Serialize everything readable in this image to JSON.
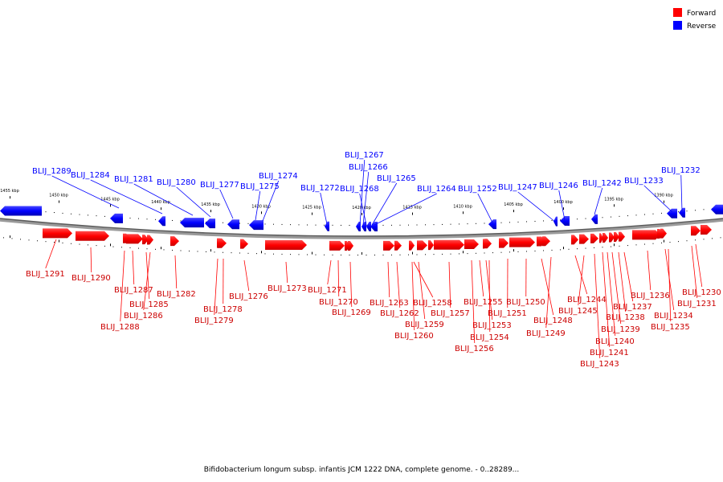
{
  "legend": {
    "forward": {
      "label": "Forward",
      "color": "#ff0000"
    },
    "reverse": {
      "label": "Reverse",
      "color": "#0000ff"
    }
  },
  "caption": "Bifidobacterium longum subsp. infantis JCM 1222 DNA, complete genome. - 0..28289...",
  "scale_labels": [
    "1455 kbp",
    "1450 kbp",
    "1445 kbp",
    "1440 kbp",
    "1435 kbp",
    "1430 kbp",
    "1425 kbp",
    "1420 kbp",
    "1415 kbp",
    "1410 kbp",
    "1405 kbp",
    "1400 kbp",
    "1395 kbp",
    "1390 kbp"
  ],
  "reverse_genes": [
    "BLIJ_1289",
    "BLIJ_1284",
    "BLIJ_1281",
    "BLIJ_1280",
    "BLIJ_1277",
    "BLIJ_1275",
    "BLIJ_1274",
    "BLIJ_1272",
    "BLIJ_1267",
    "BLIJ_1266",
    "BLIJ_1268",
    "BLIJ_1265",
    "BLIJ_1264",
    "BLIJ_1252",
    "BLIJ_1247",
    "BLIJ_1246",
    "BLIJ_1242",
    "BLIJ_1233",
    "BLIJ_1232"
  ],
  "forward_genes": [
    "BLIJ_1291",
    "BLIJ_1290",
    "BLIJ_1287",
    "BLIJ_1285",
    "BLIJ_1286",
    "BLIJ_1288",
    "BLIJ_1282",
    "BLIJ_1278",
    "BLIJ_1279",
    "BLIJ_1276",
    "BLIJ_1273",
    "BLIJ_1271",
    "BLIJ_1270",
    "BLIJ_1269",
    "BLIJ_1263",
    "BLIJ_1262",
    "BLIJ_1258",
    "BLIJ_1259",
    "BLIJ_1260",
    "BLIJ_1257",
    "BLIJ_1255",
    "BLIJ_1253",
    "BLIJ_1254",
    "BLIJ_1256",
    "BLIJ_1251",
    "BLIJ_1250",
    "BLIJ_1248",
    "BLIJ_1249",
    "BLIJ_1244",
    "BLIJ_1245",
    "BLIJ_1237",
    "BLIJ_1238",
    "BLIJ_1239",
    "BLIJ_1240",
    "BLIJ_1241",
    "BLIJ_1243",
    "BLIJ_1236",
    "BLIJ_1234",
    "BLIJ_1235",
    "BLIJ_1230",
    "BLIJ_1231"
  ]
}
